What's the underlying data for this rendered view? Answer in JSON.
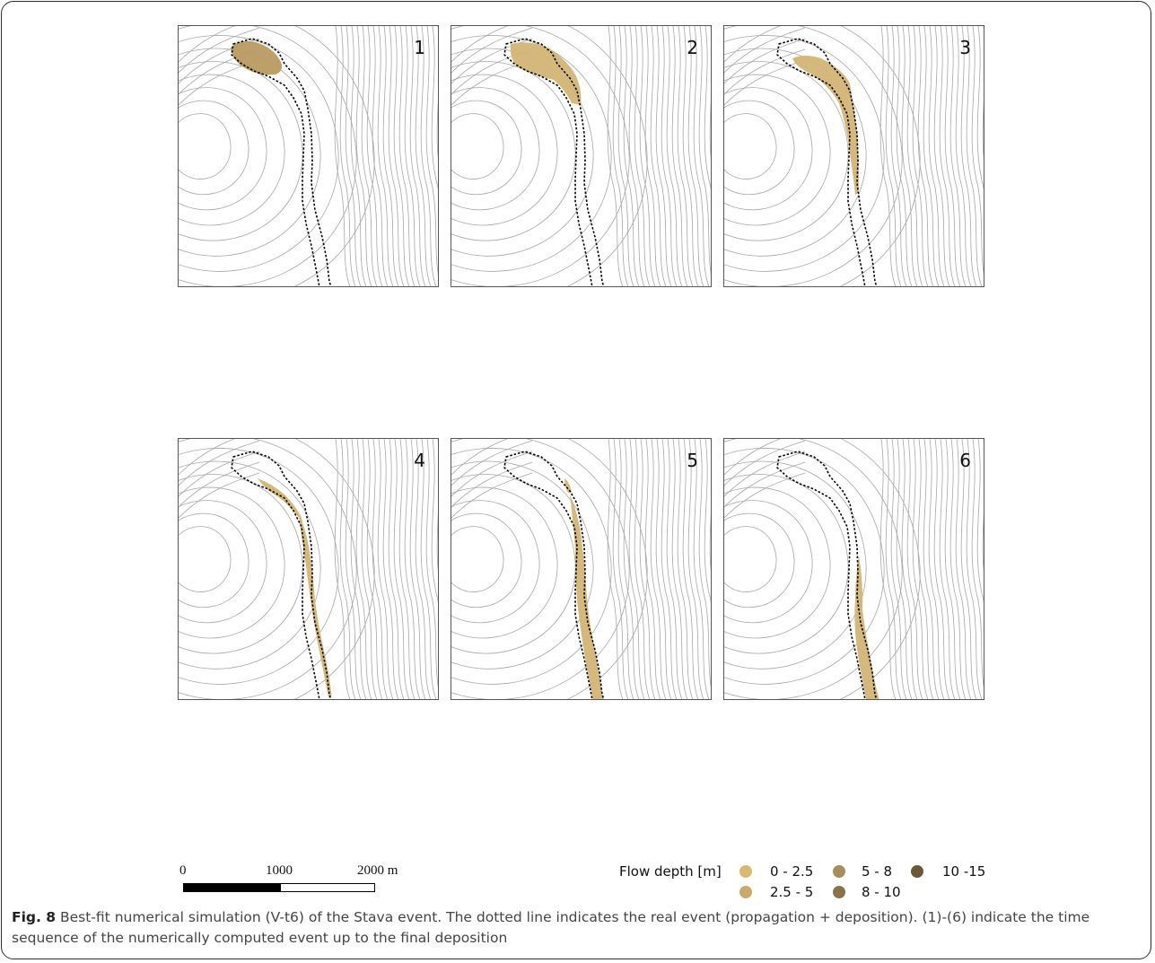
{
  "figure": {
    "panels": [
      {
        "number": "1",
        "step": 1
      },
      {
        "number": "2",
        "step": 2
      },
      {
        "number": "3",
        "step": 3
      },
      {
        "number": "4",
        "step": 4
      },
      {
        "number": "5",
        "step": 5
      },
      {
        "number": "6",
        "step": 6
      }
    ],
    "scale_bar": {
      "label_0": "0",
      "label_1000": "1000",
      "label_2000": "2000 m"
    },
    "legend": {
      "title": "Flow depth [m]",
      "classes": [
        {
          "label": "0 - 2.5",
          "color": "#d9b874"
        },
        {
          "label": "2.5 - 5",
          "color": "#c8a96a"
        },
        {
          "label": "5 - 8",
          "color": "#a68d5c"
        },
        {
          "label": "8 - 10",
          "color": "#8a7349"
        },
        {
          "label": "10 -15",
          "color": "#6b5837"
        }
      ]
    },
    "colors": {
      "flow": "#d3b575",
      "flow_deep": "#b89a61",
      "contour": "#a6a6a6",
      "real_event_outline": "#000000"
    }
  },
  "caption": {
    "label": "Fig. 8",
    "text": " Best-fit numerical simulation (V-t6) of the Stava event. The dotted line indicates the real event (propagation + deposition). (1)-(6) indicate the time sequence of the numerically computed event up to the final deposition"
  }
}
